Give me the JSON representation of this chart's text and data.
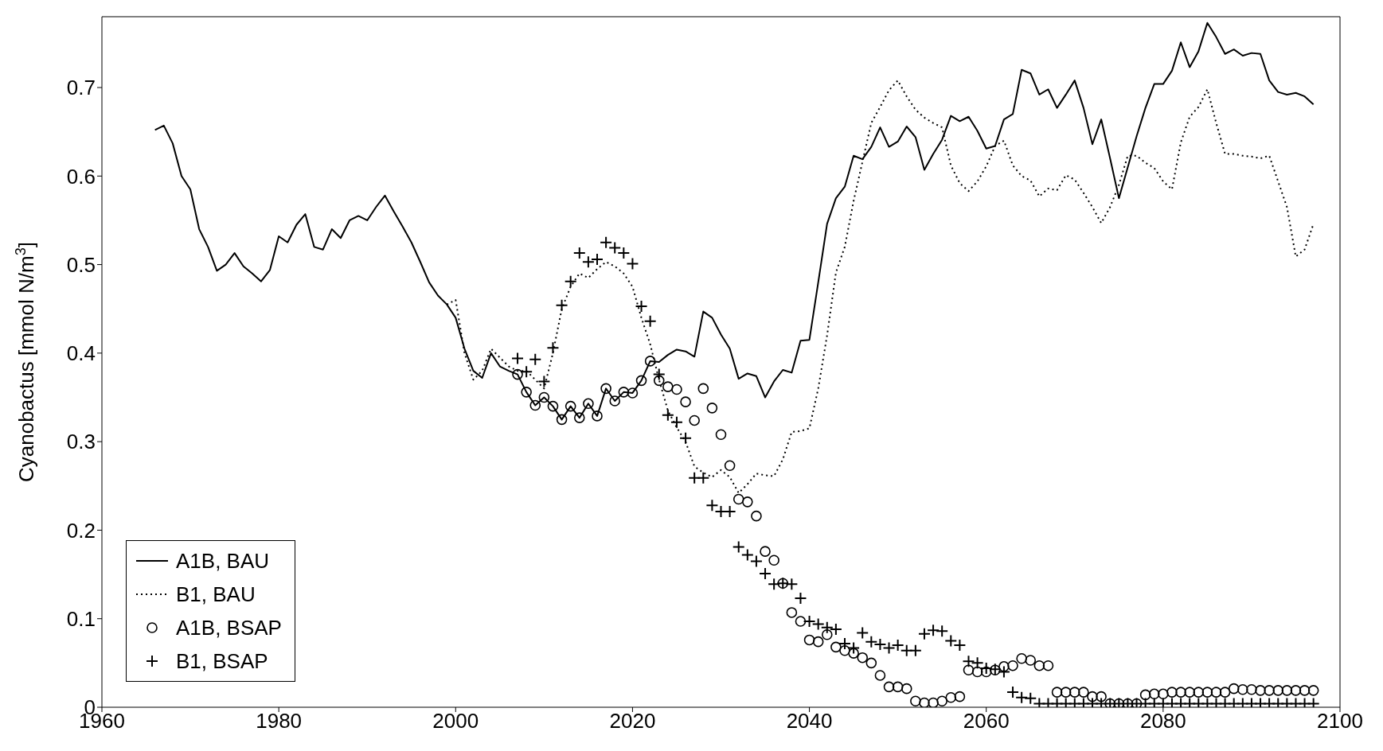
{
  "chart_data": {
    "type": "line",
    "ylabel": "Cyanobactus [mmol N/m$^{3}$]",
    "x": [
      1966,
      1967,
      1968,
      1969,
      1970,
      1971,
      1972,
      1973,
      1974,
      1975,
      1976,
      1977,
      1978,
      1979,
      1980,
      1981,
      1982,
      1983,
      1984,
      1985,
      1986,
      1987,
      1988,
      1989,
      1990,
      1991,
      1992,
      1993,
      1994,
      1995,
      1996,
      1997,
      1998,
      1999,
      2000,
      2001,
      2002,
      2003,
      2004,
      2005,
      2006,
      2007,
      2008,
      2009,
      2010,
      2011,
      2012,
      2013,
      2014,
      2015,
      2016,
      2017,
      2018,
      2019,
      2020,
      2021,
      2022,
      2023,
      2024,
      2025,
      2026,
      2027,
      2028,
      2029,
      2030,
      2031,
      2032,
      2033,
      2034,
      2035,
      2036,
      2037,
      2038,
      2039,
      2040,
      2041,
      2042,
      2043,
      2044,
      2045,
      2046,
      2047,
      2048,
      2049,
      2050,
      2051,
      2052,
      2053,
      2054,
      2055,
      2056,
      2057,
      2058,
      2059,
      2060,
      2061,
      2062,
      2063,
      2064,
      2065,
      2066,
      2067,
      2068,
      2069,
      2070,
      2071,
      2072,
      2073,
      2074,
      2075,
      2076,
      2077,
      2078,
      2079,
      2080,
      2081,
      2082,
      2083,
      2084,
      2085,
      2086,
      2087,
      2088,
      2089,
      2090,
      2091,
      2092,
      2093,
      2094,
      2095,
      2096,
      2097
    ],
    "series": [
      {
        "name": "A1B, BAU",
        "line_style": "solid",
        "color": "#000000",
        "values": [
          0.652,
          0.657,
          0.637,
          0.6,
          0.585,
          0.54,
          0.52,
          0.493,
          0.5,
          0.513,
          0.498,
          0.49,
          0.481,
          0.494,
          0.532,
          0.525,
          0.545,
          0.557,
          0.52,
          0.517,
          0.54,
          0.53,
          0.55,
          0.555,
          0.55,
          0.565,
          0.578,
          0.56,
          0.543,
          0.525,
          0.503,
          0.48,
          0.465,
          0.455,
          0.44,
          0.405,
          0.38,
          0.372,
          0.4,
          0.385,
          0.38,
          0.376,
          0.356,
          0.341,
          0.35,
          0.34,
          0.325,
          0.34,
          0.327,
          0.343,
          0.329,
          0.36,
          0.346,
          0.356,
          0.355,
          0.369,
          0.391,
          0.39,
          0.398,
          0.404,
          0.402,
          0.396,
          0.447,
          0.44,
          0.421,
          0.405,
          0.371,
          0.377,
          0.374,
          0.35,
          0.368,
          0.381,
          0.378,
          0.414,
          0.415,
          0.48,
          0.546,
          0.575,
          0.588,
          0.623,
          0.619,
          0.633,
          0.655,
          0.633,
          0.639,
          0.656,
          0.644,
          0.607,
          0.625,
          0.641,
          0.668,
          0.662,
          0.667,
          0.651,
          0.631,
          0.634,
          0.664,
          0.67,
          0.72,
          0.716,
          0.692,
          0.698,
          0.677,
          0.692,
          0.708,
          0.677,
          0.636,
          0.664,
          0.62,
          0.575,
          0.61,
          0.645,
          0.677,
          0.704,
          0.704,
          0.719,
          0.751,
          0.723,
          0.741,
          0.773,
          0.757,
          0.738,
          0.743,
          0.736,
          0.739,
          0.738,
          0.708,
          0.695,
          0.692,
          0.694,
          0.69,
          0.681
        ]
      },
      {
        "name": "B1, BAU",
        "line_style": "dotted",
        "color": "#000000",
        "values": [
          null,
          null,
          null,
          null,
          null,
          null,
          null,
          null,
          null,
          null,
          null,
          null,
          null,
          null,
          null,
          null,
          null,
          null,
          null,
          null,
          null,
          null,
          null,
          null,
          null,
          null,
          null,
          null,
          null,
          null,
          null,
          null,
          null,
          0.455,
          0.46,
          0.4,
          0.37,
          0.38,
          0.405,
          0.395,
          0.385,
          0.38,
          0.38,
          0.37,
          0.36,
          0.4,
          0.45,
          0.475,
          0.49,
          0.485,
          0.495,
          0.503,
          0.498,
          0.49,
          0.475,
          0.44,
          0.41,
          0.37,
          0.335,
          0.316,
          0.3,
          0.272,
          0.265,
          0.26,
          0.268,
          0.26,
          0.242,
          0.252,
          0.264,
          0.262,
          0.261,
          0.28,
          0.311,
          0.312,
          0.315,
          0.36,
          0.42,
          0.491,
          0.52,
          0.572,
          0.616,
          0.66,
          0.678,
          0.697,
          0.708,
          0.69,
          0.675,
          0.666,
          0.66,
          0.655,
          0.612,
          0.592,
          0.583,
          0.594,
          0.611,
          0.634,
          0.64,
          0.612,
          0.6,
          0.595,
          0.577,
          0.586,
          0.584,
          0.601,
          0.596,
          0.581,
          0.565,
          0.547,
          0.565,
          0.59,
          0.623,
          0.623,
          0.615,
          0.609,
          0.594,
          0.585,
          0.638,
          0.667,
          0.678,
          0.698,
          0.66,
          0.625,
          0.625,
          0.623,
          0.622,
          0.62,
          0.623,
          0.594,
          0.565,
          0.509,
          0.517,
          0.546
        ]
      },
      {
        "name": "A1B, BSAP",
        "type": "scatter",
        "marker": "circle",
        "color": "#000000",
        "values": [
          null,
          null,
          null,
          null,
          null,
          null,
          null,
          null,
          null,
          null,
          null,
          null,
          null,
          null,
          null,
          null,
          null,
          null,
          null,
          null,
          null,
          null,
          null,
          null,
          null,
          null,
          null,
          null,
          null,
          null,
          null,
          null,
          null,
          null,
          null,
          null,
          null,
          null,
          null,
          null,
          null,
          0.376,
          0.356,
          0.341,
          0.35,
          0.34,
          0.325,
          0.34,
          0.327,
          0.343,
          0.329,
          0.36,
          0.346,
          0.356,
          0.355,
          0.369,
          0.391,
          0.369,
          0.362,
          0.359,
          0.345,
          0.324,
          0.36,
          0.338,
          0.308,
          0.273,
          0.235,
          0.232,
          0.216,
          0.176,
          0.166,
          0.14,
          0.107,
          0.097,
          0.076,
          0.074,
          0.082,
          0.068,
          0.064,
          0.061,
          0.056,
          0.05,
          0.036,
          0.023,
          0.023,
          0.021,
          0.007,
          0.005,
          0.005,
          0.007,
          0.011,
          0.012,
          0.042,
          0.04,
          0.04,
          0.042,
          0.046,
          0.047,
          0.055,
          0.053,
          0.047,
          0.047,
          0.017,
          0.017,
          0.017,
          0.017,
          0.012,
          0.012,
          0.004,
          0.004,
          0.004,
          0.004,
          0.014,
          0.015,
          0.015,
          0.017,
          0.017,
          0.017,
          0.017,
          0.017,
          0.017,
          0.017,
          0.021,
          0.02,
          0.02,
          0.019,
          0.019,
          0.019,
          0.019,
          0.019,
          0.019,
          0.019
        ]
      },
      {
        "name": "B1, BSAP",
        "type": "scatter",
        "marker": "cross",
        "color": "#000000",
        "values": [
          null,
          null,
          null,
          null,
          null,
          null,
          null,
          null,
          null,
          null,
          null,
          null,
          null,
          null,
          null,
          null,
          null,
          null,
          null,
          null,
          null,
          null,
          null,
          null,
          null,
          null,
          null,
          null,
          null,
          null,
          null,
          null,
          null,
          null,
          null,
          null,
          null,
          null,
          null,
          null,
          null,
          0.394,
          0.379,
          0.393,
          0.368,
          0.406,
          0.454,
          0.481,
          0.513,
          0.503,
          0.506,
          0.525,
          0.519,
          0.513,
          0.501,
          0.453,
          0.436,
          0.376,
          0.33,
          0.322,
          0.304,
          0.259,
          0.259,
          0.228,
          0.221,
          0.221,
          0.181,
          0.172,
          0.165,
          0.151,
          0.139,
          0.14,
          0.139,
          0.123,
          0.097,
          0.094,
          0.09,
          0.088,
          0.072,
          0.067,
          0.084,
          0.074,
          0.071,
          0.067,
          0.07,
          0.064,
          0.064,
          0.083,
          0.087,
          0.086,
          0.075,
          0.07,
          0.052,
          0.05,
          0.044,
          0.043,
          0.04,
          0.017,
          0.011,
          0.01,
          0.004,
          0.004,
          0.004,
          0.004,
          0.004,
          0.004,
          0.004,
          0.004,
          0.004,
          0.004,
          0.004,
          0.004,
          0.004,
          0.004,
          0.004,
          0.004,
          0.004,
          0.004,
          0.004,
          0.004,
          0.004,
          0.004,
          0.004,
          0.004,
          0.004,
          0.004,
          0.004,
          0.004,
          0.004,
          0.004,
          0.004,
          0.004
        ]
      }
    ],
    "xlim": [
      1960,
      2100
    ],
    "xticks": [
      1960,
      1980,
      2000,
      2020,
      2040,
      2060,
      2080,
      2100
    ],
    "ylim": [
      0,
      0.78
    ],
    "yticks": [
      0,
      0.1,
      0.2,
      0.3,
      0.4,
      0.5,
      0.6,
      0.7
    ],
    "grid": false,
    "legend": "bottom left"
  }
}
